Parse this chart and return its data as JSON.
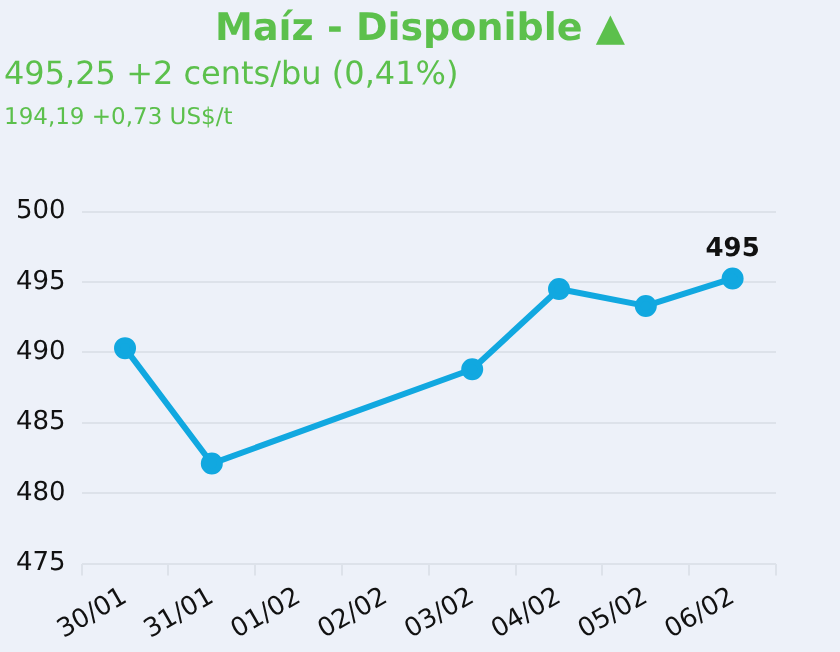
{
  "chart_data": {
    "type": "line",
    "title": "Maíz - Disponible ▲",
    "subtitle": "495,25 +2 cents/bu (0,41%)",
    "annotations": [
      "194,19 +0,73 US$/t"
    ],
    "categories": [
      "30/01",
      "31/01",
      "01/02",
      "02/02",
      "03/02",
      "04/02",
      "05/02",
      "06/02"
    ],
    "series": [
      {
        "color": "#11a8e0",
        "values": [
          490.3,
          482.1,
          null,
          null,
          488.8,
          494.5,
          493.3,
          495.25
        ],
        "value_labels": [
          null,
          null,
          null,
          null,
          null,
          null,
          null,
          "495"
        ]
      }
    ],
    "ylim": [
      475,
      500
    ],
    "yticks": [
      475,
      480,
      485,
      490,
      495,
      500
    ],
    "grid": "y",
    "legend": false,
    "marker": "circle",
    "line_style": "solid"
  }
}
